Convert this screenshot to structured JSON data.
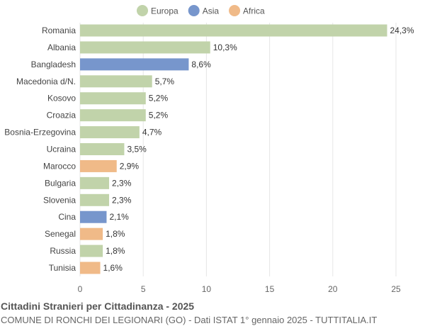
{
  "chart_data": {
    "type": "bar",
    "orientation": "horizontal",
    "title": "Cittadini Stranieri per Cittadinanza - 2025",
    "subtitle": "COMUNE DI RONCHI DEI LEGIONARI (GO) - Dati ISTAT 1° gennaio 2025 - TUTTITALIA.IT",
    "legend": [
      {
        "name": "Europa",
        "color": "#c1d3aa"
      },
      {
        "name": "Asia",
        "color": "#7796cc"
      },
      {
        "name": "Africa",
        "color": "#f0ba88"
      }
    ],
    "legend_position": "top",
    "categories": [
      "Romania",
      "Albania",
      "Bangladesh",
      "Macedonia d/N.",
      "Kosovo",
      "Croazia",
      "Bosnia-Erzegovina",
      "Ucraina",
      "Marocco",
      "Bulgaria",
      "Slovenia",
      "Cina",
      "Senegal",
      "Russia",
      "Tunisia"
    ],
    "values": [
      24.3,
      10.3,
      8.6,
      5.7,
      5.2,
      5.2,
      4.7,
      3.5,
      2.9,
      2.3,
      2.3,
      2.1,
      1.8,
      1.8,
      1.6
    ],
    "labels": [
      "24,3%",
      "10,3%",
      "8,6%",
      "5,7%",
      "5,2%",
      "5,2%",
      "4,7%",
      "3,5%",
      "2,9%",
      "2,3%",
      "2,3%",
      "2,1%",
      "1,8%",
      "1,8%",
      "1,6%"
    ],
    "groups": [
      "Europa",
      "Europa",
      "Asia",
      "Europa",
      "Europa",
      "Europa",
      "Europa",
      "Europa",
      "Africa",
      "Europa",
      "Europa",
      "Asia",
      "Africa",
      "Europa",
      "Africa"
    ],
    "xticks": [
      0,
      5,
      10,
      15,
      20,
      25
    ],
    "xlim": [
      0,
      25
    ],
    "grid": true
  }
}
